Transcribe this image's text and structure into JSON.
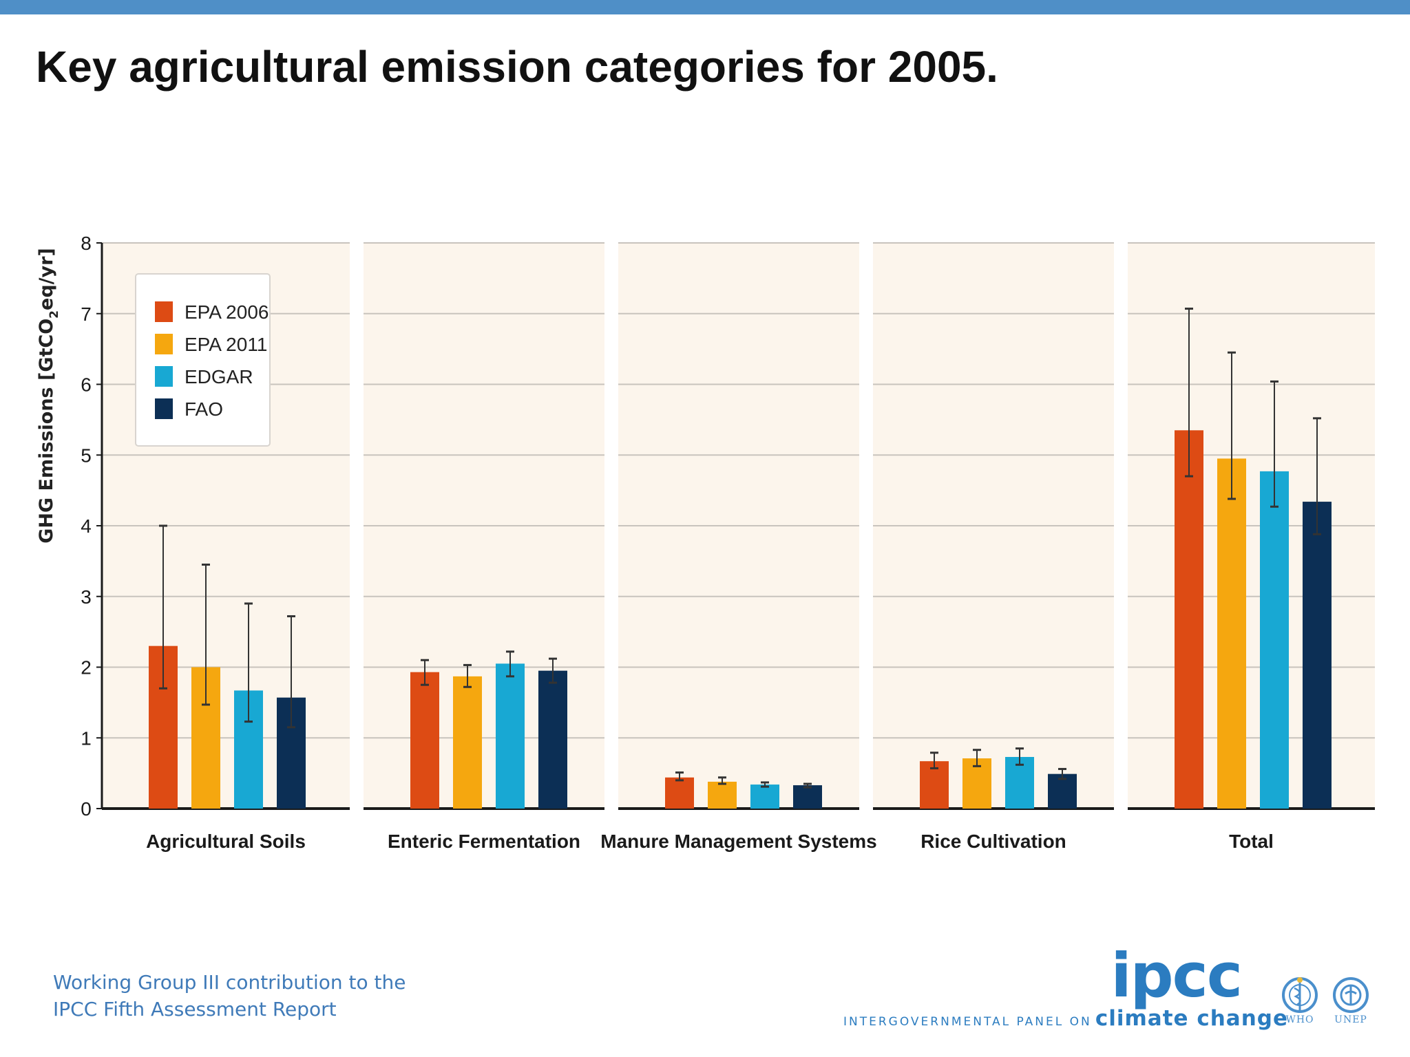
{
  "slide": {
    "title": "Key agricultural emission categories for 2005."
  },
  "chart_data": {
    "type": "bar",
    "title": "",
    "ylabel_main": "GHG Emissions [GtCO",
    "ylabel_sub": "2",
    "ylabel_tail": "eq/yr]",
    "ylim": [
      0,
      8
    ],
    "yticks": [
      "0",
      "1",
      "2",
      "3",
      "4",
      "5",
      "6",
      "7",
      "8"
    ],
    "grid": true,
    "legend_position": "top-left",
    "categories": [
      "Agricultural Soils",
      "Enteric Fermentation",
      "Manure Management Systems",
      "Rice Cultivation",
      "Total"
    ],
    "series": [
      {
        "name": "EPA 2006",
        "color": "#dd4b14",
        "values": [
          2.3,
          1.93,
          0.44,
          0.67,
          5.35
        ],
        "err_low": [
          1.7,
          1.75,
          0.4,
          0.57,
          4.7
        ],
        "err_high": [
          4.0,
          2.1,
          0.51,
          0.79,
          7.07
        ]
      },
      {
        "name": "EPA 2011",
        "color": "#f5a70f",
        "values": [
          2.0,
          1.87,
          0.38,
          0.71,
          4.95
        ],
        "err_low": [
          1.47,
          1.72,
          0.35,
          0.6,
          4.38
        ],
        "err_high": [
          3.45,
          2.03,
          0.44,
          0.83,
          6.45
        ]
      },
      {
        "name": "EDGAR",
        "color": "#18a8d3",
        "values": [
          1.67,
          2.05,
          0.34,
          0.73,
          4.77
        ],
        "err_low": [
          1.23,
          1.87,
          0.31,
          0.62,
          4.27
        ],
        "err_high": [
          2.9,
          2.22,
          0.37,
          0.85,
          6.04
        ]
      },
      {
        "name": "FAO",
        "color": "#0c2f55",
        "values": [
          1.57,
          1.95,
          0.33,
          0.49,
          4.34
        ],
        "err_low": [
          1.15,
          1.78,
          0.3,
          0.42,
          3.88
        ],
        "err_high": [
          2.72,
          2.12,
          0.35,
          0.56,
          5.52
        ]
      }
    ]
  },
  "footer": {
    "line1": "Working Group III contribution to the",
    "line2": "IPCC Fifth Assessment Report"
  },
  "logo": {
    "ipcc_word": "ipcc",
    "sub_small": "INTERGOVERNMENTAL PANEL ON",
    "sub_big": "climate change",
    "who_label": "WHO",
    "unep_label": "UNEP"
  }
}
